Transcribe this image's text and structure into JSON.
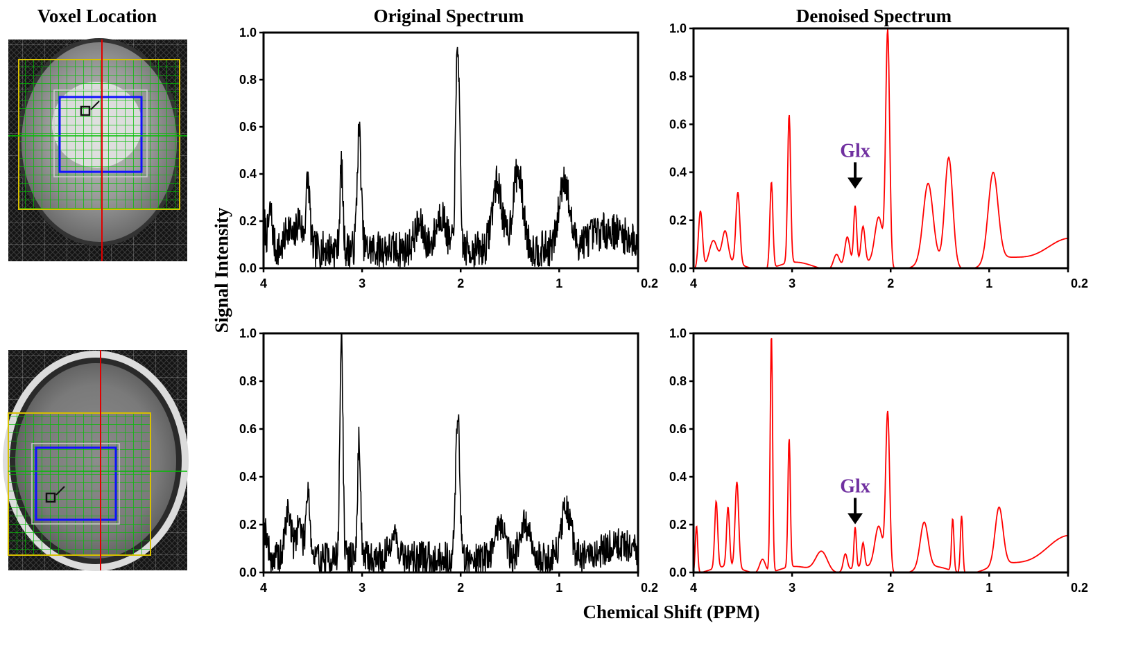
{
  "titles": {
    "voxel": "Voxel Location",
    "original": "Original Spectrum",
    "denoised": "Denoised Spectrum",
    "ylabel": "Signal Intensity",
    "xlabel": "Chemical Shift (PPM)"
  },
  "colors": {
    "original": "#000000",
    "denoised": "#ff0000",
    "annotation": "#7030a0",
    "mri_grid": "#00c000",
    "mri_box": "#1010ff",
    "mri_outer": "#d8c000",
    "mri_line": "#e00000"
  },
  "chart_data": [
    {
      "id": "orig-top",
      "type": "line",
      "color": "#000000",
      "noisy": true,
      "seed": 7,
      "xlabel": "Chemical Shift (PPM)",
      "ylabel": "Signal Intensity",
      "xlim": [
        4,
        0.2
      ],
      "ylim": [
        0,
        1.0
      ],
      "xticks": [
        "4",
        "3",
        "2",
        "1",
        "0.2"
      ],
      "yticks": [
        "0.0",
        "0.2",
        "0.4",
        "0.6",
        "0.8",
        "1.0"
      ],
      "peaks": [
        [
          4.0,
          0.12,
          0.02
        ],
        [
          3.93,
          0.16,
          0.02
        ],
        [
          3.75,
          0.1,
          0.03
        ],
        [
          3.64,
          0.13,
          0.03
        ],
        [
          3.55,
          0.3,
          0.02
        ],
        [
          3.21,
          0.35,
          0.015
        ],
        [
          3.03,
          0.5,
          0.02
        ],
        [
          2.42,
          0.1,
          0.05
        ],
        [
          2.2,
          0.15,
          0.05
        ],
        [
          2.03,
          0.88,
          0.02
        ],
        [
          1.63,
          0.28,
          0.05
        ],
        [
          1.42,
          0.33,
          0.05
        ],
        [
          0.95,
          0.3,
          0.05
        ],
        [
          0.5,
          0.08,
          0.2
        ]
      ],
      "baseline": 0.08,
      "noise": 0.05
    },
    {
      "id": "den-top",
      "type": "line",
      "color": "#ff0000",
      "noisy": false,
      "xlabel": "Chemical Shift (PPM)",
      "ylabel": "Signal Intensity",
      "xlim": [
        4,
        0.2
      ],
      "ylim": [
        0,
        1.0
      ],
      "xticks": [
        "4",
        "3",
        "2",
        "1",
        "0.2"
      ],
      "yticks": [
        "0.0",
        "0.2",
        "0.4",
        "0.6",
        "0.8",
        "1.0"
      ],
      "peaks": [
        [
          3.93,
          0.24,
          0.02
        ],
        [
          3.8,
          0.1,
          0.04
        ],
        [
          3.68,
          0.13,
          0.03
        ],
        [
          3.55,
          0.3,
          0.02
        ],
        [
          3.21,
          0.36,
          0.015
        ],
        [
          3.03,
          0.62,
          0.015
        ],
        [
          2.55,
          0.06,
          0.03
        ],
        [
          2.44,
          0.12,
          0.025
        ],
        [
          2.36,
          0.24,
          0.015
        ],
        [
          2.28,
          0.15,
          0.02
        ],
        [
          2.12,
          0.2,
          0.04
        ],
        [
          2.03,
          0.98,
          0.02
        ],
        [
          1.62,
          0.33,
          0.05
        ],
        [
          1.41,
          0.45,
          0.04
        ],
        [
          0.96,
          0.37,
          0.05
        ],
        [
          0.2,
          0.1,
          0.35
        ]
      ],
      "annotation": {
        "label": "Glx",
        "x": 2.36
      }
    },
    {
      "id": "orig-bot",
      "type": "line",
      "color": "#000000",
      "noisy": true,
      "seed": 19,
      "xlabel": "Chemical Shift (PPM)",
      "ylabel": "Signal Intensity",
      "xlim": [
        4,
        0.2
      ],
      "ylim": [
        0,
        1.0
      ],
      "xticks": [
        "4",
        "3",
        "2",
        "1",
        "0.2"
      ],
      "yticks": [
        "0.0",
        "0.2",
        "0.4",
        "0.6",
        "0.8",
        "1.0"
      ],
      "peaks": [
        [
          3.98,
          0.12,
          0.02
        ],
        [
          3.75,
          0.2,
          0.03
        ],
        [
          3.64,
          0.15,
          0.03
        ],
        [
          3.55,
          0.3,
          0.02
        ],
        [
          3.21,
          0.95,
          0.015
        ],
        [
          3.03,
          0.5,
          0.015
        ],
        [
          2.68,
          0.1,
          0.04
        ],
        [
          2.03,
          0.62,
          0.02
        ],
        [
          1.6,
          0.15,
          0.05
        ],
        [
          1.35,
          0.14,
          0.05
        ],
        [
          0.93,
          0.2,
          0.05
        ],
        [
          0.4,
          0.06,
          0.15
        ]
      ],
      "baseline": 0.06,
      "noise": 0.045
    },
    {
      "id": "den-bot",
      "type": "line",
      "color": "#ff0000",
      "noisy": false,
      "xlabel": "Chemical Shift (PPM)",
      "ylabel": "Signal Intensity",
      "xlim": [
        4,
        0.2
      ],
      "ylim": [
        0,
        1.0
      ],
      "xticks": [
        "4",
        "3",
        "2",
        "1",
        "0.2"
      ],
      "yticks": [
        "0.0",
        "0.2",
        "0.4",
        "0.6",
        "0.8",
        "1.0"
      ],
      "peaks": [
        [
          3.97,
          0.2,
          0.012
        ],
        [
          3.77,
          0.28,
          0.015
        ],
        [
          3.65,
          0.25,
          0.015
        ],
        [
          3.56,
          0.36,
          0.018
        ],
        [
          3.3,
          0.06,
          0.03
        ],
        [
          3.21,
          1.0,
          0.012
        ],
        [
          3.03,
          0.54,
          0.012
        ],
        [
          2.7,
          0.09,
          0.06
        ],
        [
          2.46,
          0.07,
          0.02
        ],
        [
          2.36,
          0.17,
          0.012
        ],
        [
          2.28,
          0.1,
          0.015
        ],
        [
          2.12,
          0.18,
          0.04
        ],
        [
          2.03,
          0.66,
          0.02
        ],
        [
          1.66,
          0.19,
          0.04
        ],
        [
          1.37,
          0.22,
          0.012
        ],
        [
          1.28,
          0.24,
          0.012
        ],
        [
          0.9,
          0.24,
          0.04
        ],
        [
          0.2,
          0.13,
          0.3
        ]
      ],
      "annotation": {
        "label": "Glx",
        "x": 2.36
      }
    }
  ]
}
